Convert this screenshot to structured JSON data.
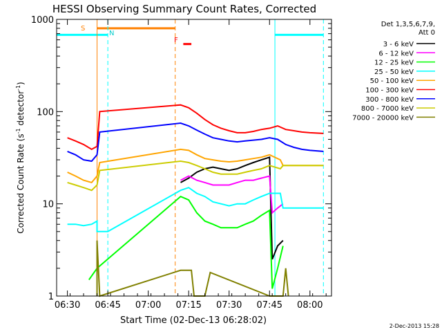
{
  "chart_data": {
    "type": "line",
    "title": "HESSI Observing Summary Count Rates, Corrected",
    "xlabel": "Start Time (02-Dec-13 06:28:02)",
    "ylabel_main": "Corrected Count Rate (s",
    "ylabel_sup1": "-1",
    "ylabel_mid": " detector",
    "ylabel_sup2": "-1",
    "ylabel_end": ")",
    "xlim": [
      "06:26",
      "08:08"
    ],
    "ylim": [
      1,
      1000
    ],
    "yscale": "log",
    "x_ticks": [
      "06:30",
      "06:45",
      "07:00",
      "07:15",
      "07:30",
      "07:45",
      "08:00"
    ],
    "y_ticks": [
      "1",
      "10",
      "100",
      "1000"
    ],
    "legend_title_1": "Det 1,3,5,6,7,9,",
    "legend_title_2": "Att 0",
    "legend_position": "right",
    "flag_labels": {
      "saa": "S",
      "night": "N",
      "flare": "F"
    },
    "series": [
      {
        "name": "3 - 6 keV",
        "color": "#000000",
        "points": [
          [
            "07:12",
            17
          ],
          [
            "07:15",
            19
          ],
          [
            "07:18",
            22
          ],
          [
            "07:21",
            24
          ],
          [
            "07:24",
            25
          ],
          [
            "07:27",
            24
          ],
          [
            "07:30",
            23
          ],
          [
            "07:33",
            24
          ],
          [
            "07:36",
            26
          ],
          [
            "07:39",
            28
          ],
          [
            "07:42",
            30
          ],
          [
            "07:45",
            32
          ],
          [
            "07:46",
            2.5
          ],
          [
            "07:48",
            3.5
          ],
          [
            "07:50",
            4
          ]
        ]
      },
      {
        "name": "6 - 12 keV",
        "color": "#ff00ff",
        "points": [
          [
            "07:12",
            18
          ],
          [
            "07:15",
            20
          ],
          [
            "07:18",
            18
          ],
          [
            "07:21",
            17
          ],
          [
            "07:24",
            16
          ],
          [
            "07:27",
            16
          ],
          [
            "07:30",
            16
          ],
          [
            "07:33",
            17
          ],
          [
            "07:36",
            18
          ],
          [
            "07:39",
            18
          ],
          [
            "07:42",
            19
          ],
          [
            "07:45",
            20
          ],
          [
            "07:46",
            8
          ],
          [
            "07:48",
            9
          ],
          [
            "07:50",
            10
          ]
        ]
      },
      {
        "name": "12 - 25 keV",
        "color": "#00ff00",
        "points": [
          [
            "06:38",
            1.5
          ],
          [
            "06:41",
            2
          ],
          [
            "07:12",
            12
          ],
          [
            "07:15",
            11
          ],
          [
            "07:18",
            8
          ],
          [
            "07:21",
            6.5
          ],
          [
            "07:24",
            6
          ],
          [
            "07:27",
            5.5
          ],
          [
            "07:30",
            5.5
          ],
          [
            "07:33",
            5.5
          ],
          [
            "07:36",
            6
          ],
          [
            "07:39",
            6.5
          ],
          [
            "07:42",
            7.5
          ],
          [
            "07:45",
            8.5
          ],
          [
            "07:46",
            1.2
          ],
          [
            "07:48",
            2
          ],
          [
            "07:50",
            3.5
          ]
        ]
      },
      {
        "name": "25 - 50 keV",
        "color": "#00ffff",
        "points": [
          [
            "06:30",
            6
          ],
          [
            "06:33",
            6
          ],
          [
            "06:36",
            5.8
          ],
          [
            "06:39",
            6
          ],
          [
            "06:41",
            6.5
          ],
          [
            "06:41",
            5
          ],
          [
            "06:45",
            5
          ],
          [
            "07:12",
            14
          ],
          [
            "07:15",
            15
          ],
          [
            "07:18",
            13
          ],
          [
            "07:21",
            12
          ],
          [
            "07:24",
            10.5
          ],
          [
            "07:27",
            10
          ],
          [
            "07:30",
            9.5
          ],
          [
            "07:33",
            10
          ],
          [
            "07:36",
            10
          ],
          [
            "07:39",
            11
          ],
          [
            "07:42",
            12
          ],
          [
            "07:45",
            13
          ],
          [
            "07:49",
            13
          ],
          [
            "07:50",
            9
          ],
          [
            "08:05",
            9
          ]
        ]
      },
      {
        "name": "50 - 100 keV",
        "color": "#ffa500",
        "points": [
          [
            "06:30",
            22
          ],
          [
            "06:33",
            20
          ],
          [
            "06:36",
            18
          ],
          [
            "06:39",
            17
          ],
          [
            "06:41",
            20
          ],
          [
            "06:42",
            28
          ],
          [
            "07:12",
            39
          ],
          [
            "07:15",
            38
          ],
          [
            "07:18",
            34
          ],
          [
            "07:21",
            31
          ],
          [
            "07:24",
            30
          ],
          [
            "07:27",
            29
          ],
          [
            "07:30",
            28.5
          ],
          [
            "07:33",
            29
          ],
          [
            "07:36",
            30
          ],
          [
            "07:39",
            31
          ],
          [
            "07:42",
            32
          ],
          [
            "07:45",
            34
          ],
          [
            "07:49",
            30
          ],
          [
            "07:50",
            26
          ],
          [
            "08:05",
            26
          ]
        ]
      },
      {
        "name": "100 - 300 keV",
        "color": "#ff0000",
        "points": [
          [
            "06:30",
            52
          ],
          [
            "06:33",
            48
          ],
          [
            "06:36",
            44
          ],
          [
            "06:39",
            39
          ],
          [
            "06:41",
            42
          ],
          [
            "06:42",
            100
          ],
          [
            "07:12",
            118
          ],
          [
            "07:15",
            110
          ],
          [
            "07:18",
            96
          ],
          [
            "07:21",
            82
          ],
          [
            "07:24",
            72
          ],
          [
            "07:27",
            66
          ],
          [
            "07:30",
            62
          ],
          [
            "07:33",
            59
          ],
          [
            "07:36",
            59
          ],
          [
            "07:39",
            61
          ],
          [
            "07:42",
            64
          ],
          [
            "07:45",
            66
          ],
          [
            "07:48",
            70
          ],
          [
            "07:51",
            64
          ],
          [
            "07:54",
            62
          ],
          [
            "07:57",
            60
          ],
          [
            "08:00",
            59
          ],
          [
            "08:05",
            58
          ]
        ]
      },
      {
        "name": "300 - 800 keV",
        "color": "#0000ff",
        "points": [
          [
            "06:30",
            37
          ],
          [
            "06:33",
            34
          ],
          [
            "06:36",
            30
          ],
          [
            "06:39",
            29
          ],
          [
            "06:41",
            34
          ],
          [
            "06:42",
            60
          ],
          [
            "07:12",
            75
          ],
          [
            "07:15",
            70
          ],
          [
            "07:18",
            63
          ],
          [
            "07:21",
            57
          ],
          [
            "07:24",
            52
          ],
          [
            "07:27",
            50
          ],
          [
            "07:30",
            48
          ],
          [
            "07:33",
            47
          ],
          [
            "07:36",
            48
          ],
          [
            "07:39",
            49
          ],
          [
            "07:42",
            50
          ],
          [
            "07:45",
            52
          ],
          [
            "07:48",
            50
          ],
          [
            "07:51",
            44
          ],
          [
            "07:54",
            41
          ],
          [
            "07:57",
            39
          ],
          [
            "08:00",
            38
          ],
          [
            "08:05",
            37
          ]
        ]
      },
      {
        "name": "800 - 7000 keV",
        "color": "#cccc00",
        "points": [
          [
            "06:30",
            17
          ],
          [
            "06:33",
            16
          ],
          [
            "06:36",
            15
          ],
          [
            "06:39",
            14
          ],
          [
            "06:41",
            16
          ],
          [
            "06:42",
            23
          ],
          [
            "07:12",
            29
          ],
          [
            "07:15",
            28
          ],
          [
            "07:18",
            26
          ],
          [
            "07:21",
            24
          ],
          [
            "07:24",
            22
          ],
          [
            "07:27",
            21
          ],
          [
            "07:30",
            21
          ],
          [
            "07:33",
            21
          ],
          [
            "07:36",
            22
          ],
          [
            "07:39",
            23
          ],
          [
            "07:42",
            24
          ],
          [
            "07:45",
            26
          ],
          [
            "07:49",
            24
          ],
          [
            "07:50",
            26
          ],
          [
            "08:05",
            26
          ]
        ]
      },
      {
        "name": "7000 - 20000 keV",
        "color": "#808000",
        "points": [
          [
            "06:41",
            1
          ],
          [
            "06:41",
            4
          ],
          [
            "06:42",
            1
          ],
          [
            "07:12",
            1.9
          ],
          [
            "07:16",
            1.9
          ],
          [
            "07:17",
            1
          ],
          [
            "07:21",
            1
          ],
          [
            "07:23",
            1.8
          ],
          [
            "07:45",
            1
          ],
          [
            "07:50",
            1
          ],
          [
            "07:51",
            2
          ],
          [
            "07:52",
            1
          ]
        ]
      }
    ],
    "flag_bars": [
      {
        "name": "saa",
        "color": "#ff8000",
        "segments": [
          [
            "06:41",
            "07:10"
          ]
        ],
        "level": 800
      },
      {
        "name": "night",
        "color": "#00ffff",
        "segments": [
          [
            "06:26",
            "06:45"
          ],
          [
            "07:47",
            "08:05"
          ]
        ],
        "level": 680
      },
      {
        "name": "flare",
        "color": "#ff0000",
        "segments": [
          [
            "07:13",
            "07:16"
          ]
        ],
        "level": 540
      }
    ],
    "vertical_markers": [
      {
        "at": "06:41",
        "color": "#ff8000",
        "style": "solid"
      },
      {
        "at": "06:45",
        "color": "#00ffff",
        "style": "dashed"
      },
      {
        "at": "07:10",
        "color": "#ff8000",
        "style": "dashed"
      },
      {
        "at": "07:47",
        "color": "#00ffff",
        "style": "solid"
      },
      {
        "at": "08:05",
        "color": "#00ffff",
        "style": "dashed"
      }
    ]
  },
  "footer_timestamp": "2-Dec-2013 15:28"
}
